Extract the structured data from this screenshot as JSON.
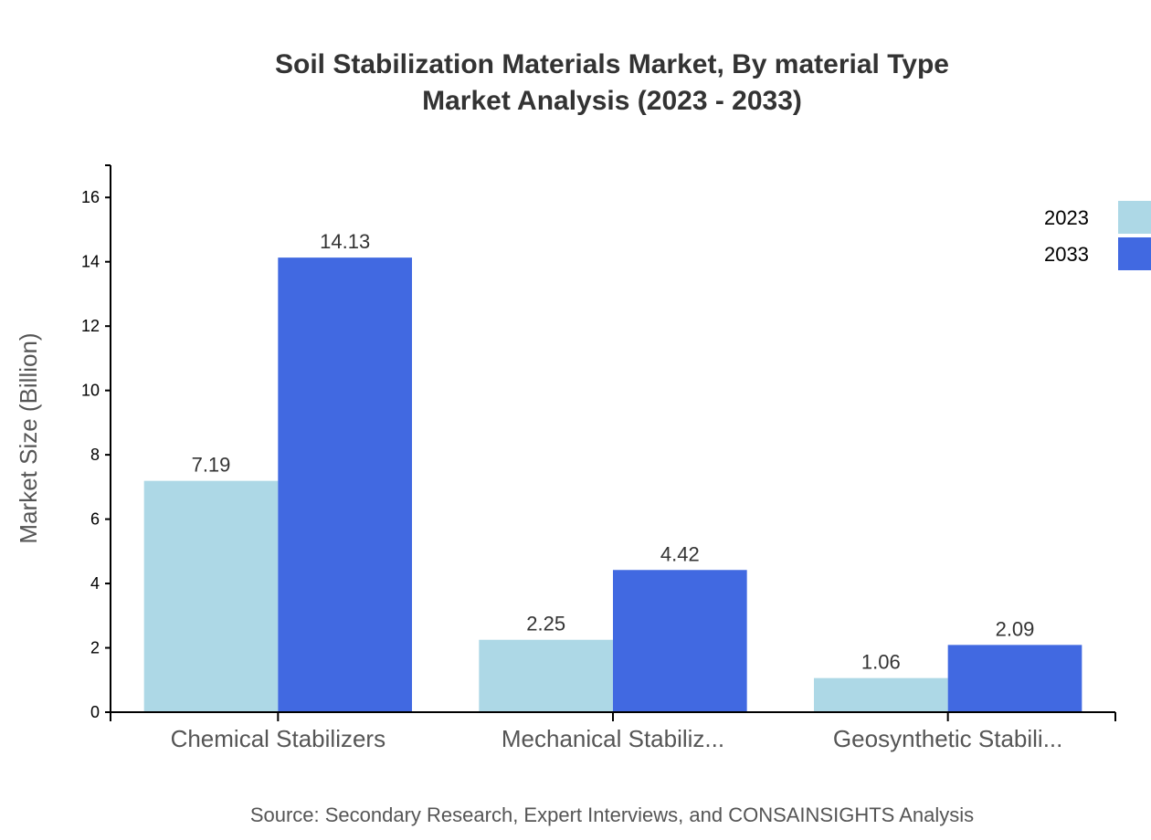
{
  "chart_data": {
    "type": "bar",
    "title": "Soil Stabilization Materials Market, By material Type",
    "subtitle": "Market Analysis (2023 - 2033)",
    "ylabel": "Market Size (Billion)",
    "xlabel": "",
    "ylim": [
      0,
      17
    ],
    "yticks": [
      0,
      2,
      4,
      6,
      8,
      10,
      12,
      14,
      16
    ],
    "categories": [
      "Chemical Stabilizers",
      "Mechanical Stabiliz...",
      "Geosynthetic Stabili..."
    ],
    "series": [
      {
        "name": "2023",
        "color": "#add8e6",
        "values": [
          7.19,
          2.25,
          1.06
        ]
      },
      {
        "name": "2033",
        "color": "#4169e1",
        "values": [
          14.13,
          4.42,
          2.09
        ]
      }
    ],
    "grid": false,
    "legend": "top-right",
    "source": "Source: Secondary Research, Expert Interviews, and CONSAINSIGHTS Analysis"
  }
}
